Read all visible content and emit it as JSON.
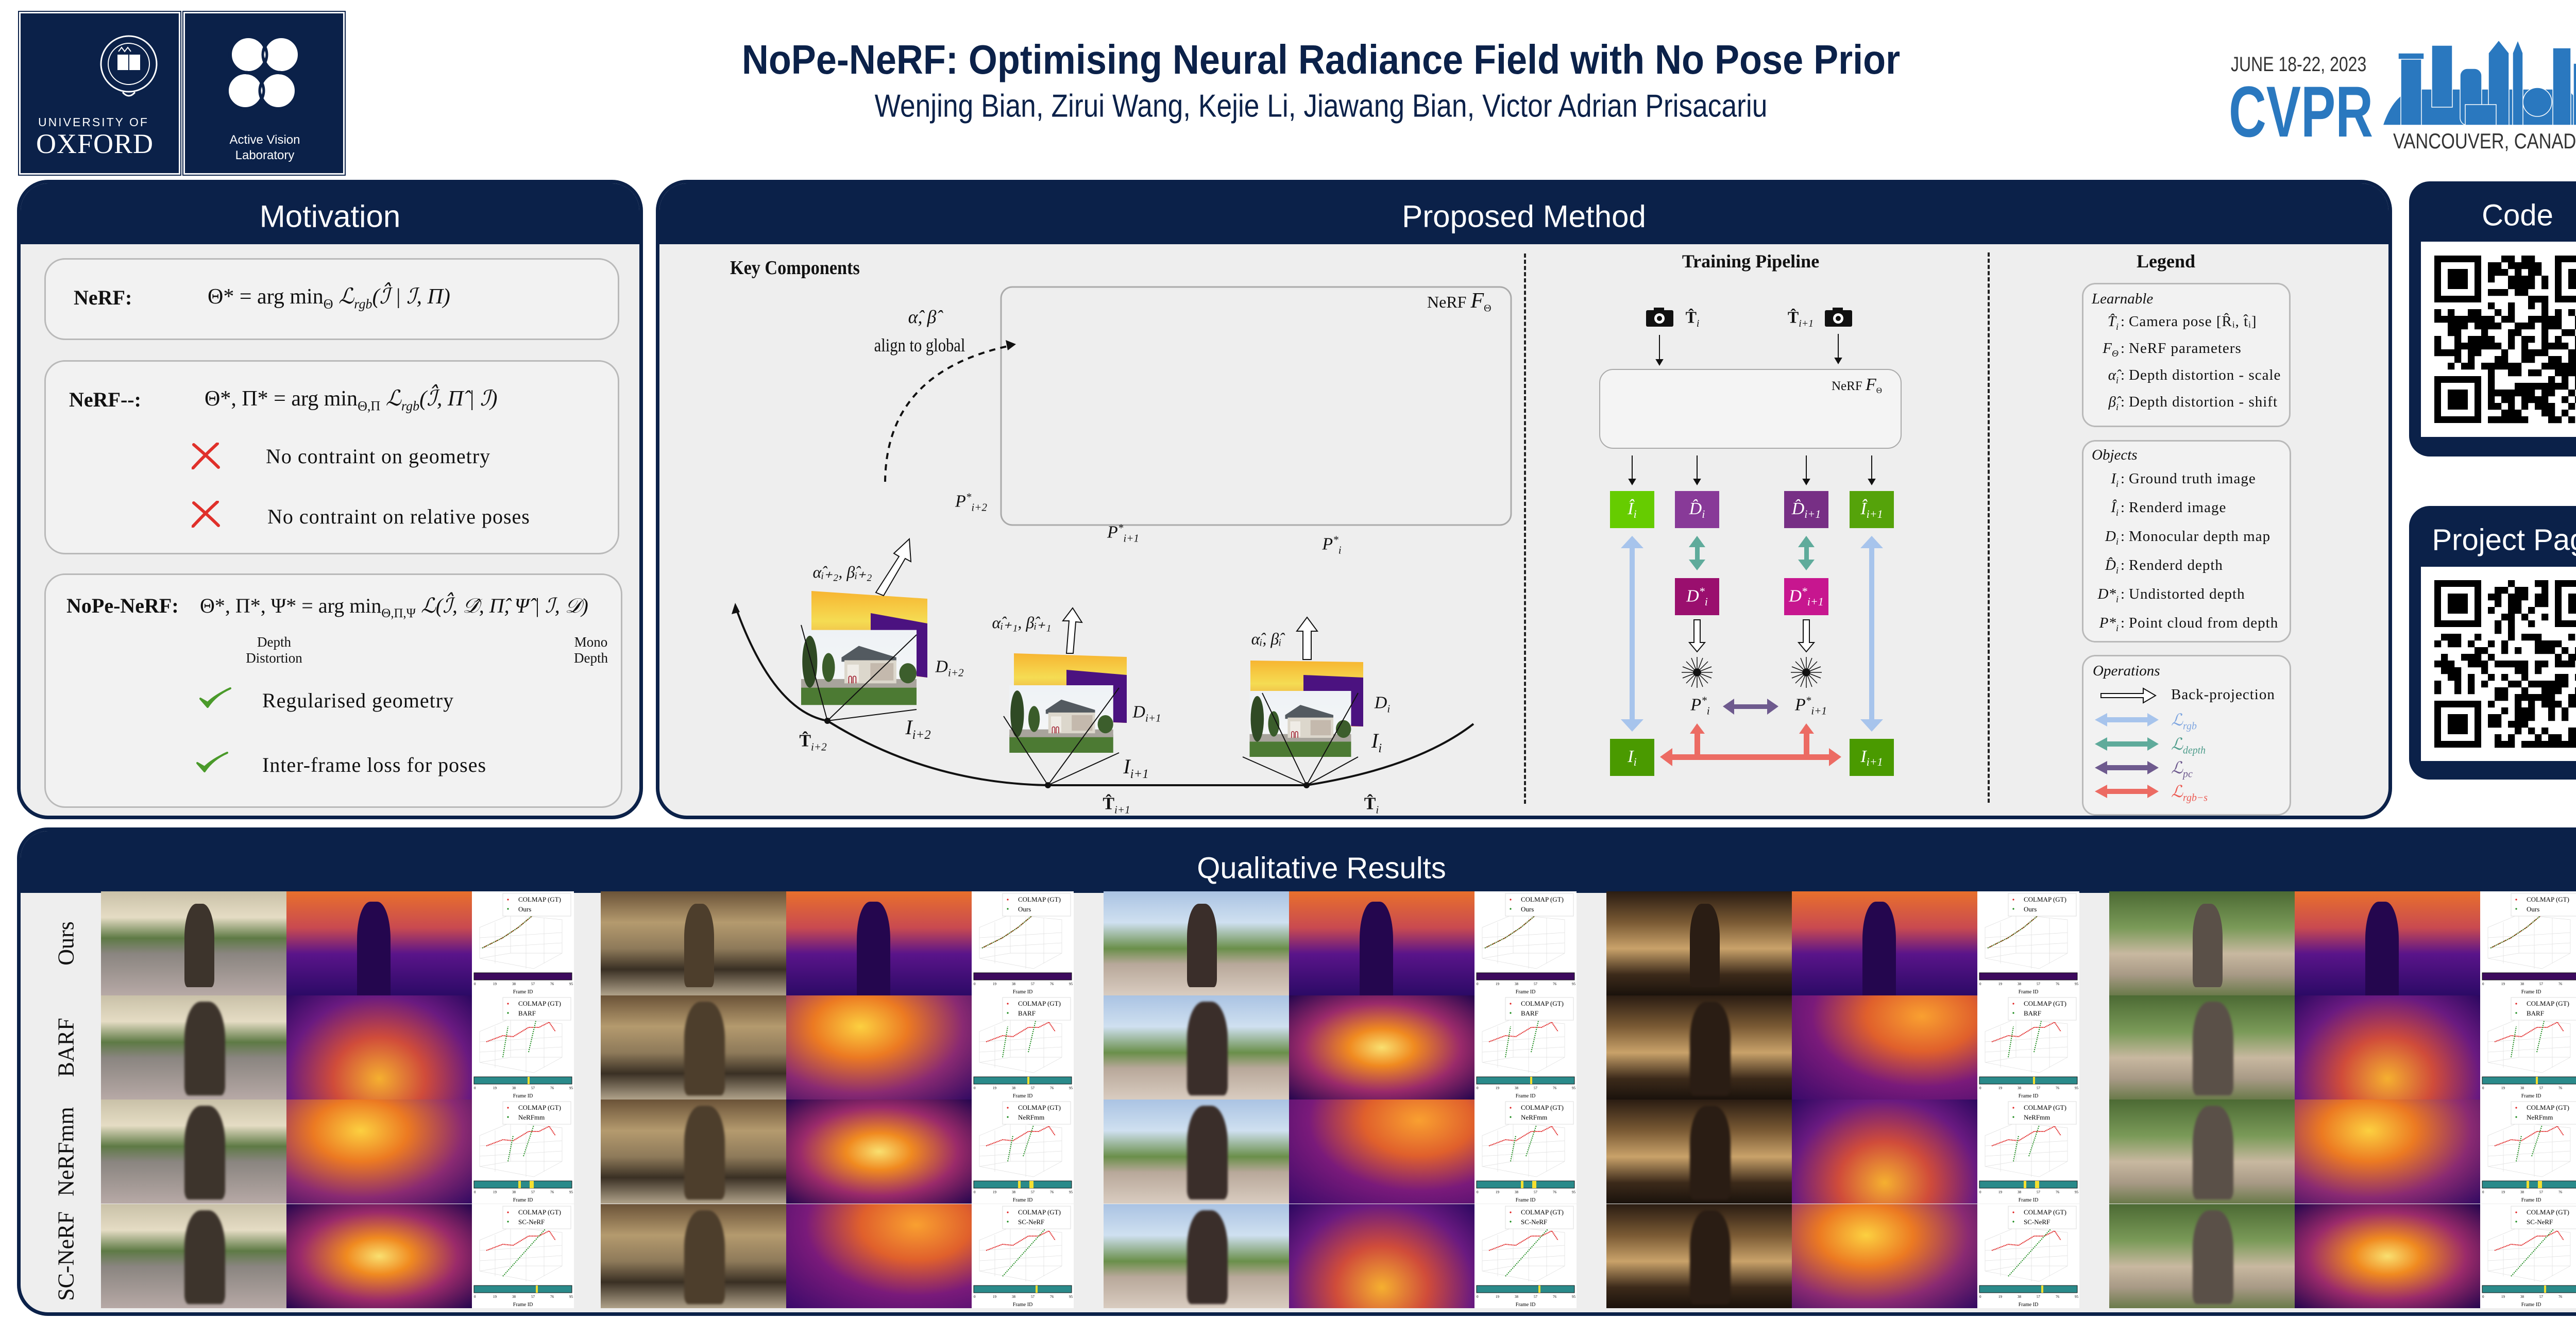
{
  "header": {
    "title": "NoPe-NeRF: Optimising Neural Radiance Field with No Pose Prior",
    "authors": "Wenjing Bian, Zirui Wang, Kejie Li, Jiawang Bian, Victor Adrian Prisacariu",
    "oxford_logo": {
      "line1": "UNIVERSITY OF",
      "line2": "OXFORD"
    },
    "avl_logo": {
      "line1": "Active Vision",
      "line2": "Laboratory"
    },
    "cvpr_logo": {
      "dates": "JUNE 18-22, 2023",
      "name": "CVPR",
      "location": "VANCOUVER, CANADA"
    }
  },
  "colors": {
    "navy": "#0b2149",
    "panel_bg": "#eeeeee",
    "rgb_loss": "#a7c4ec",
    "depth_loss": "#5fab9b",
    "pc_loss": "#6e5a8e",
    "rgbs_loss": "#ec6b63",
    "cross": "#e0302a",
    "check": "#4a9a2a"
  },
  "motivation": {
    "title": "Motivation",
    "nerf": {
      "label": "NeRF:",
      "eq": [
        "Θ* = arg min",
        "Θ",
        " ℒ",
        "rgb",
        "(ℐ̂ | ℐ, Π)"
      ]
    },
    "nerfmm": {
      "label": "NeRF--:",
      "eq": [
        "Θ*, Π* = arg min",
        "Θ,Π",
        " ℒ",
        "rgb",
        "(ℐ̂, Π̂ | ℐ)"
      ],
      "cons": [
        "No contraint on geometry",
        "No contraint on relative poses"
      ]
    },
    "nope": {
      "label": "NoPe-NeRF:",
      "eq": [
        "Θ*, Π*, Ψ* = arg min",
        "Θ,Π,Ψ",
        " ℒ(ℐ̂, 𝒟̂, Π̂, Ψ̂ | ℐ, 𝒟)"
      ],
      "note_left": [
        "Depth",
        "Distortion"
      ],
      "note_right": [
        "Mono",
        "Depth"
      ],
      "pros": [
        "Regularised geometry",
        "Inter-frame loss for poses"
      ]
    }
  },
  "method": {
    "title": "Proposed Method",
    "key": {
      "heading": "Key Components",
      "align_syms": "α̂, β̂",
      "align_text": "align to global",
      "nerf_label": "NeRF",
      "nerf_sym": "F",
      "nerf_sub": "Θ",
      "clouds": [
        {
          "sym": "P",
          "sub": "i+2"
        },
        {
          "sym": "P",
          "sub": "i+1"
        },
        {
          "sym": "P",
          "sub": "i"
        }
      ],
      "distortions": [
        "α̂ᵢ₊₂, β̂ᵢ₊₂",
        "α̂ᵢ₊₁, β̂ᵢ₊₁",
        "α̂ᵢ, β̂ᵢ"
      ],
      "depths": [
        "i+2",
        "i+1",
        "i"
      ],
      "images": [
        "i+2",
        "i+1",
        "i"
      ],
      "poses": [
        "i+2",
        "i+1",
        "i"
      ]
    },
    "pipeline": {
      "heading": "Training Pipeline",
      "cam_left": "i",
      "cam_right": "i+1",
      "nerf_label": "NeRF",
      "nerf_sym": "F",
      "nerf_sub": "Θ",
      "boxes": [
        {
          "sym": "Î",
          "sub": "i",
          "sup": "",
          "color": "#66cc00"
        },
        {
          "sym": "D̂",
          "sub": "i",
          "sup": "",
          "color": "#883a98"
        },
        {
          "sym": "D̂",
          "sub": "i+1",
          "sup": "",
          "color": "#772f85"
        },
        {
          "sym": "Î",
          "sub": "i+1",
          "sup": "",
          "color": "#55a30a"
        },
        {
          "sym": "D",
          "sub": "i",
          "sup": "*",
          "color": "#9a0f6e"
        },
        {
          "sym": "D",
          "sub": "i+1",
          "sup": "*",
          "color": "#c7168f"
        },
        {
          "sym": "I",
          "sub": "i",
          "sup": "",
          "color": "#4a9a00"
        },
        {
          "sym": "I",
          "sub": "i+1",
          "sup": "",
          "color": "#4a9a00"
        }
      ],
      "clouds": [
        {
          "sym": "P",
          "sub": "i"
        },
        {
          "sym": "P",
          "sub": "i+1"
        }
      ]
    },
    "legend": {
      "heading": "Legend",
      "learnable_title": "Learnable",
      "learnable": [
        {
          "sym": "T̂",
          "sub": "i",
          "desc": "Camera pose [R̂ᵢ, t̂ᵢ]"
        },
        {
          "sym": "F",
          "sub": "Θ",
          "desc": "NeRF parameters"
        },
        {
          "sym": "α̂",
          "sub": "i",
          "desc": "Depth distortion - scale"
        },
        {
          "sym": "β̂",
          "sub": "i",
          "desc": "Depth distortion - shift"
        }
      ],
      "objects_title": "Objects",
      "objects": [
        {
          "sym": "I",
          "sub": "i",
          "desc": "Ground truth image"
        },
        {
          "sym": "Î",
          "sub": "i",
          "desc": "Renderd image"
        },
        {
          "sym": "D",
          "sub": "i",
          "desc": "Monocular depth map"
        },
        {
          "sym": "D̂",
          "sub": "i",
          "desc": "Renderd depth"
        },
        {
          "sym": "D*",
          "sub": "i",
          "desc": "Undistorted depth"
        },
        {
          "sym": "P*",
          "sub": "i",
          "desc": "Point cloud from depth"
        }
      ],
      "operations_title": "Operations",
      "operations": [
        {
          "desc": "Back-projection"
        },
        {
          "sym": "ℒ",
          "sub": "rgb"
        },
        {
          "sym": "ℒ",
          "sub": "depth"
        },
        {
          "sym": "ℒ",
          "sub": "pc"
        },
        {
          "sym": "ℒ",
          "sub": "rgb−s"
        }
      ]
    }
  },
  "code": {
    "title": "Code"
  },
  "project": {
    "title": "Project Page"
  },
  "results": {
    "title": "Qualitative Results",
    "rows": [
      "Ours",
      "BARF",
      "NeRFmm",
      "SC-NeRF"
    ],
    "gt_label": "COLMAP (GT)",
    "frame_label": "Frame ID",
    "frame_ticks": [
      "0",
      "19",
      "38",
      "57",
      "76",
      "95"
    ]
  }
}
